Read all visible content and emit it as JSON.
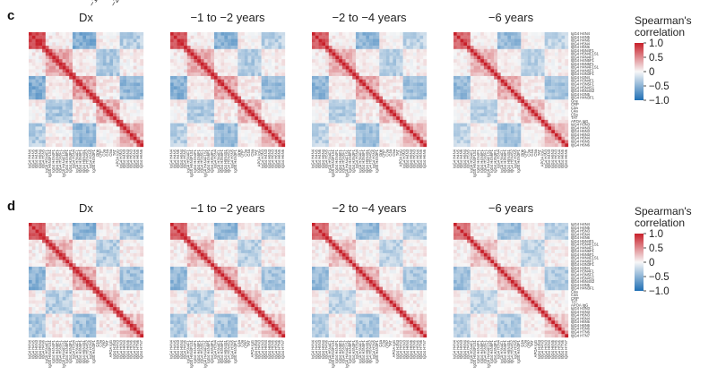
{
  "top_fragments": [
    "−1",
    "−2"
  ],
  "colors": {
    "neg": "#1f6fb4",
    "zero": "#f7f7f7",
    "pos": "#c8202a"
  },
  "chart_data": [
    {
      "type": "heatmap",
      "panel": "c",
      "colorbar": {
        "title_lines": [
          "Spearman's",
          "correlation"
        ],
        "range": [
          -1.0,
          1.0
        ],
        "ticks": [
          {
            "value": 1.0,
            "label": "1.0"
          },
          {
            "value": 0.5,
            "label": "0.5"
          },
          {
            "value": 0.0,
            "label": "0"
          },
          {
            "value": -0.5,
            "label": "−0.5"
          },
          {
            "value": -1.0,
            "label": "−1.0"
          }
        ]
      },
      "variables": [
        "IgG4 H4N4",
        "IgG4 H4N5",
        "IgG4 H4N6",
        "IgG4 H5N4",
        "IgG4 H5N5",
        "IgG4 H5N4F1",
        "IgG4 H5N4F1S1",
        "IgG4 H4N4F1",
        "IgG4 H4N5F1",
        "IgG4 H5N5F1",
        "IgG4 H4N4F1S1",
        "IgG4 H4N6F1",
        "IgG4 H3N3F1",
        "IgG4 H3N4",
        "IgG4 H3N4F1",
        "IgG4 H3N5F1",
        "IgG4 H5N4S1",
        "IgG4 H5N4S2",
        "IgG4 H3N5",
        "IgG4 H4N3F1",
        "Gne",
        "CRP",
        "C3a",
        "C4a",
        "C5a",
        "TAT",
        "APOA IgG",
        "IgG4 H3N3",
        "IgG4 H4N3",
        "IgG4 H5N3",
        "IgG4 H6N3",
        "IgG4 H6N4",
        "IgG4 H6N5",
        "IgG4 H6N6"
      ],
      "blocks": [
        [
          0,
          5,
          0.85
        ],
        [
          5,
          13,
          0.35
        ],
        [
          13,
          20,
          0.4
        ],
        [
          20,
          27,
          0.3
        ],
        [
          27,
          34,
          0.3
        ]
      ],
      "negative_links": [
        [
          0,
          5,
          13,
          20,
          -0.55
        ],
        [
          5,
          13,
          20,
          27,
          -0.35
        ],
        [
          13,
          20,
          27,
          34,
          -0.45
        ],
        [
          0,
          5,
          27,
          34,
          -0.3
        ]
      ],
      "heatmaps": [
        {
          "title": "Dx"
        },
        {
          "title": "−1 to −2 years"
        },
        {
          "title": "−2 to −4 years"
        },
        {
          "title": "−6 years"
        }
      ]
    },
    {
      "type": "heatmap",
      "panel": "d",
      "colorbar": {
        "title_lines": [
          "Spearman's",
          "correlation"
        ],
        "range": [
          -1.0,
          1.0
        ],
        "ticks": [
          {
            "value": 1.0,
            "label": "1.0"
          },
          {
            "value": 0.5,
            "label": "0.5"
          },
          {
            "value": 0.0,
            "label": "0"
          },
          {
            "value": -0.5,
            "label": "−0.5"
          },
          {
            "value": -1.0,
            "label": "−1.0"
          }
        ]
      },
      "variables": [
        "IgG4 H4N4",
        "IgG4 H4N5",
        "IgG4 H5N3",
        "IgG4 H5N4",
        "IgG4 H4N6",
        "IgG4 H5N4F1",
        "IgG4 H5N4F1S1",
        "IgG4 H4N4F1",
        "IgG4 H4N5F1",
        "IgG4 H5N5F1",
        "IgG4 H4N4F1S1",
        "IgG4 H4N6F1",
        "IgG4 H3N3F1",
        "IgG4 H3N4",
        "IgG4 H3N4F1",
        "IgG4 H3N5F1",
        "IgG4 H5N4S1",
        "IgG4 H5N4S2",
        "IgG4 H3N5",
        "IgG4 H4N3F1",
        "C4a",
        "C3a",
        "CRP",
        "TAT",
        "APOA IgG",
        "IgG4 H3N3",
        "IgG4 H4N3",
        "IgG4 H6N3",
        "IgG4 H6N4",
        "IgG4 H6N5",
        "IgG4 H6N6",
        "IgG4 H5N6",
        "IgG4 H7N6",
        "IgG4 H7N7"
      ],
      "blocks": [
        [
          0,
          5,
          0.8
        ],
        [
          5,
          13,
          0.3
        ],
        [
          13,
          20,
          0.35
        ],
        [
          20,
          27,
          0.3
        ],
        [
          27,
          34,
          0.25
        ]
      ],
      "negative_links": [
        [
          0,
          5,
          13,
          20,
          -0.5
        ],
        [
          5,
          13,
          20,
          27,
          -0.3
        ],
        [
          13,
          20,
          27,
          34,
          -0.4
        ],
        [
          0,
          5,
          27,
          34,
          -0.35
        ]
      ],
      "heatmaps": [
        {
          "title": "Dx"
        },
        {
          "title": "−1 to −2 years"
        },
        {
          "title": "−2 to −4 years"
        },
        {
          "title": "−6 years"
        }
      ]
    }
  ]
}
